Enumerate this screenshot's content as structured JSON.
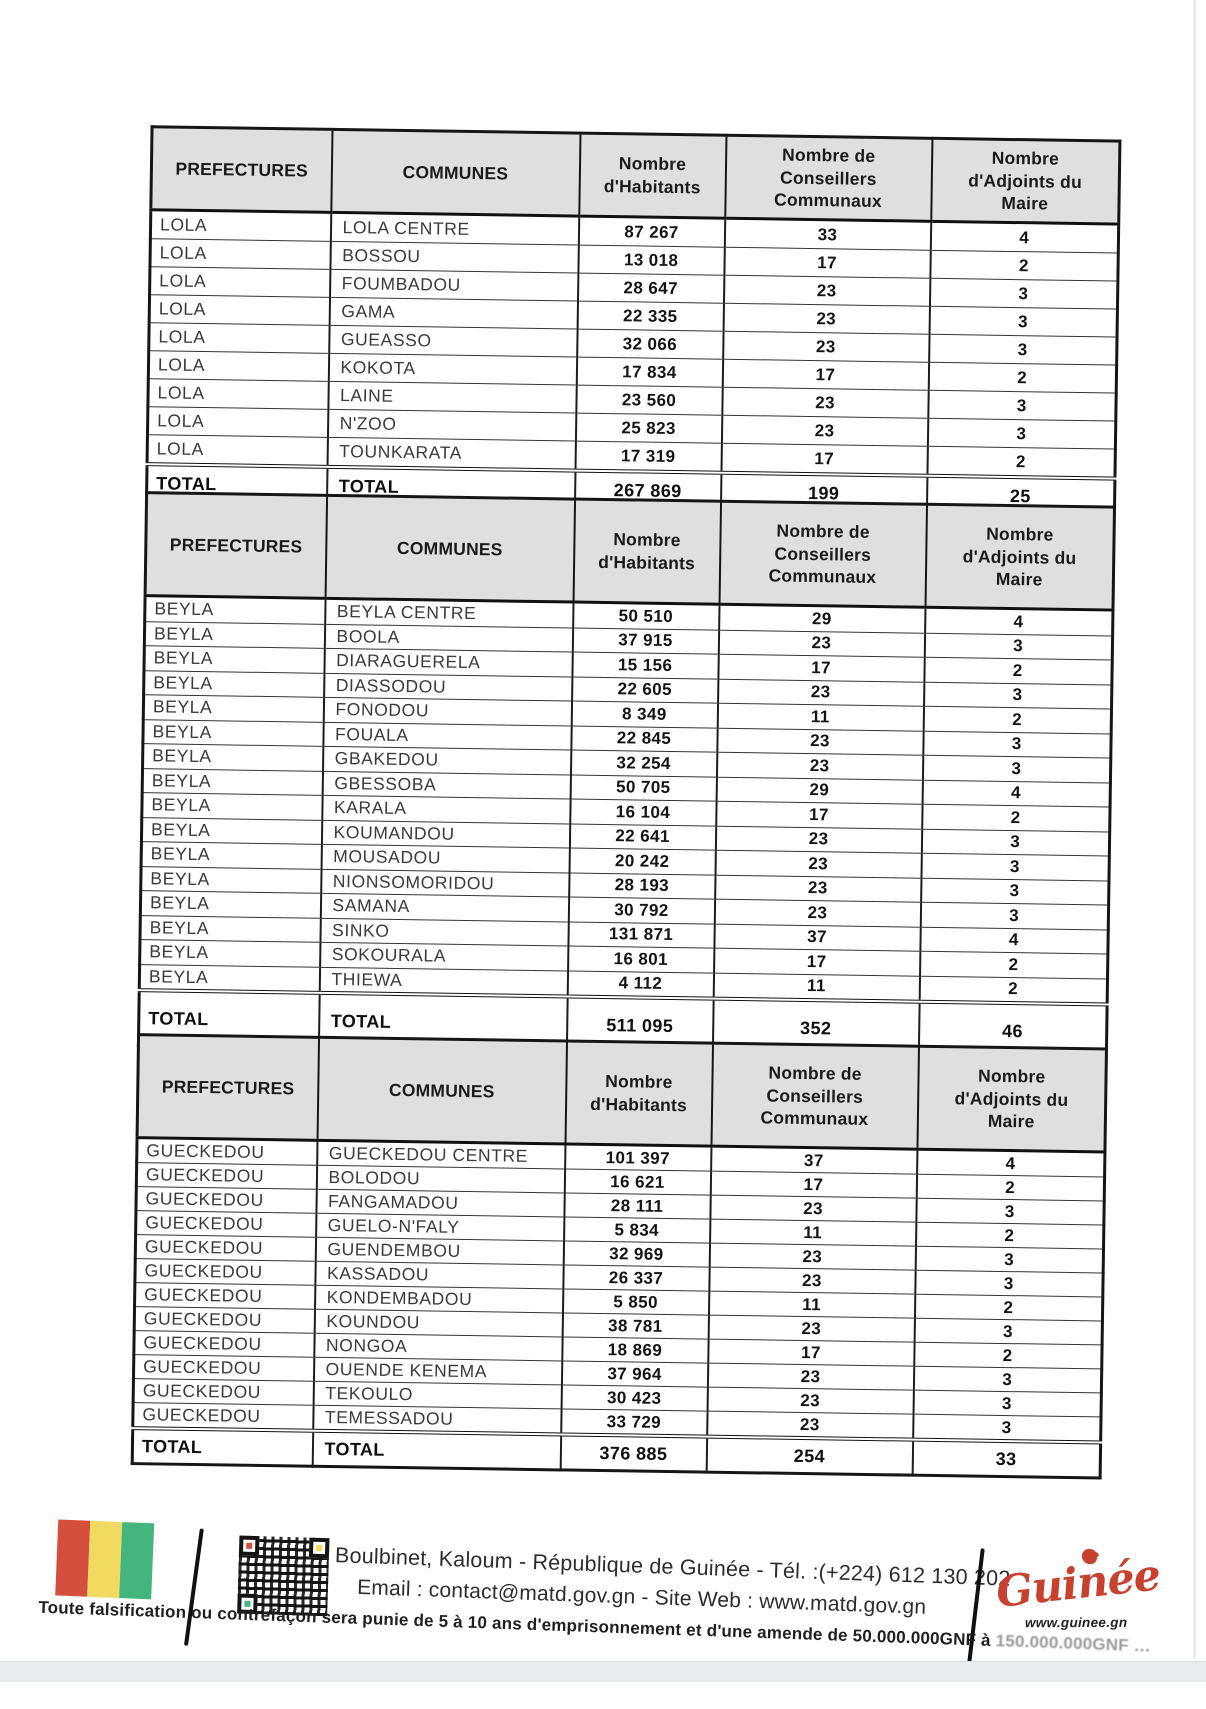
{
  "table_columns": [
    "PREFECTURES",
    "COMMUNES",
    "Nombre d'Habitants",
    "Nombre de Conseillers Communaux",
    "Nombre d'Adjoints du Maire"
  ],
  "tables": [
    {
      "name": "LOLA",
      "rows": [
        [
          "LOLA",
          "LOLA CENTRE",
          "87 267",
          "33",
          "4"
        ],
        [
          "LOLA",
          "BOSSOU",
          "13 018",
          "17",
          "2"
        ],
        [
          "LOLA",
          "FOUMBADOU",
          "28 647",
          "23",
          "3"
        ],
        [
          "LOLA",
          "GAMA",
          "22 335",
          "23",
          "3"
        ],
        [
          "LOLA",
          "GUEASSO",
          "32 066",
          "23",
          "3"
        ],
        [
          "LOLA",
          "KOKOTA",
          "17 834",
          "17",
          "2"
        ],
        [
          "LOLA",
          "LAINE",
          "23 560",
          "23",
          "3"
        ],
        [
          "LOLA",
          "N'ZOO",
          "25 823",
          "23",
          "3"
        ],
        [
          "LOLA",
          "TOUNKARATA",
          "17 319",
          "17",
          "2"
        ]
      ],
      "total": [
        "TOTAL",
        "TOTAL",
        "267 869",
        "199",
        "25"
      ]
    },
    {
      "name": "BEYLA",
      "rows": [
        [
          "BEYLA",
          "BEYLA CENTRE",
          "50 510",
          "29",
          "4"
        ],
        [
          "BEYLA",
          "BOOLA",
          "37 915",
          "23",
          "3"
        ],
        [
          "BEYLA",
          "DIARAGUERELA",
          "15 156",
          "17",
          "2"
        ],
        [
          "BEYLA",
          "DIASSODOU",
          "22 605",
          "23",
          "3"
        ],
        [
          "BEYLA",
          "FONODOU",
          "8 349",
          "11",
          "2"
        ],
        [
          "BEYLA",
          "FOUALA",
          "22 845",
          "23",
          "3"
        ],
        [
          "BEYLA",
          "GBAKEDOU",
          "32 254",
          "23",
          "3"
        ],
        [
          "BEYLA",
          "GBESSOBA",
          "50 705",
          "29",
          "4"
        ],
        [
          "BEYLA",
          "KARALA",
          "16 104",
          "17",
          "2"
        ],
        [
          "BEYLA",
          "KOUMANDOU",
          "22 641",
          "23",
          "3"
        ],
        [
          "BEYLA",
          "MOUSADOU",
          "20 242",
          "23",
          "3"
        ],
        [
          "BEYLA",
          "NIONSOMORIDOU",
          "28 193",
          "23",
          "3"
        ],
        [
          "BEYLA",
          "SAMANA",
          "30 792",
          "23",
          "3"
        ],
        [
          "BEYLA",
          "SINKO",
          "131 871",
          "37",
          "4"
        ],
        [
          "BEYLA",
          "SOKOURALA",
          "16 801",
          "17",
          "2"
        ],
        [
          "BEYLA",
          "THIEWA",
          "4 112",
          "11",
          "2"
        ]
      ],
      "total": [
        "TOTAL",
        "TOTAL",
        "511 095",
        "352",
        "46"
      ]
    },
    {
      "name": "GUECKEDOU",
      "rows": [
        [
          "GUECKEDOU",
          "GUECKEDOU CENTRE",
          "101 397",
          "37",
          "4"
        ],
        [
          "GUECKEDOU",
          "BOLODOU",
          "16 621",
          "17",
          "2"
        ],
        [
          "GUECKEDOU",
          "FANGAMADOU",
          "28 111",
          "23",
          "3"
        ],
        [
          "GUECKEDOU",
          "GUELO-N'FALY",
          "5 834",
          "11",
          "2"
        ],
        [
          "GUECKEDOU",
          "GUENDEMBOU",
          "32 969",
          "23",
          "3"
        ],
        [
          "GUECKEDOU",
          "KASSADOU",
          "26 337",
          "23",
          "3"
        ],
        [
          "GUECKEDOU",
          "KONDEMBADOU",
          "5 850",
          "11",
          "2"
        ],
        [
          "GUECKEDOU",
          "KOUNDOU",
          "38 781",
          "23",
          "3"
        ],
        [
          "GUECKEDOU",
          "NONGOA",
          "18 869",
          "17",
          "2"
        ],
        [
          "GUECKEDOU",
          "OUENDE KENEMA",
          "37 964",
          "23",
          "3"
        ],
        [
          "GUECKEDOU",
          "TEKOULO",
          "30 423",
          "23",
          "3"
        ],
        [
          "GUECKEDOU",
          "TEMESSADOU",
          "33 729",
          "23",
          "3"
        ]
      ],
      "total": [
        "TOTAL",
        "TOTAL",
        "376 885",
        "254",
        "33"
      ]
    }
  ],
  "footer": {
    "address_line1": "Boulbinet, Kaloum - République de Guinée - Tél. :(+224) 612 130 202",
    "address_line2": "Email : contact@matd.gov.gn - Site Web : www.matd.gov.gn",
    "logo_text": "Guinée",
    "logo_site": "www.guinee.gn",
    "colors": {
      "flag_red": "#d5503c",
      "flag_yellow": "#f2d95f",
      "flag_green": "#43b57d",
      "logo_red": "#c8402e"
    }
  },
  "legal": {
    "text_main": "Toute falsification ou contrefaçon sera punie de 5 à 10 ans d'emprisonnement et d'une amende de 50.000.000GNF à ",
    "text_faded": "150.000.000GNF …"
  }
}
